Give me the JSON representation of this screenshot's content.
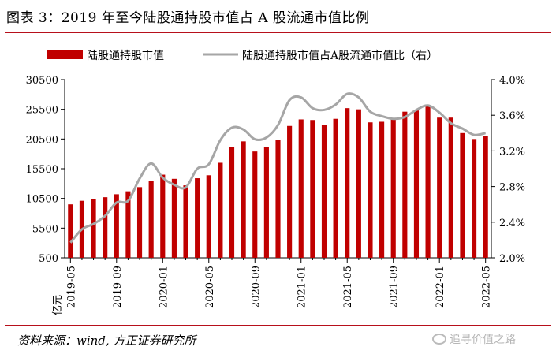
{
  "header": {
    "title": "图表 3：2019 年至今陆股通持股市值占 A 股流通市值比例"
  },
  "footer": {
    "source": "资料来源：wind, 方正证券研究所",
    "watermark": "追寻价值之路"
  },
  "colors": {
    "bar": "#c00000",
    "line": "#a6a6a6",
    "rule": "#b7101b"
  },
  "icons": {
    "watermark": "wechat-icon"
  },
  "chart_data": {
    "type": "bar",
    "y_unit_label": "亿元",
    "x": [
      "2019-05",
      "2019-06",
      "2019-07",
      "2019-08",
      "2019-09",
      "2019-10",
      "2019-11",
      "2019-12",
      "2020-01",
      "2020-02",
      "2020-03",
      "2020-04",
      "2020-05",
      "2020-06",
      "2020-07",
      "2020-08",
      "2020-09",
      "2020-10",
      "2020-11",
      "2020-12",
      "2021-01",
      "2021-02",
      "2021-03",
      "2021-04",
      "2021-05",
      "2021-06",
      "2021-07",
      "2021-08",
      "2021-09",
      "2021-10",
      "2021-11",
      "2021-12",
      "2022-01",
      "2022-02",
      "2022-03",
      "2022-04",
      "2022-05"
    ],
    "x_tick_labels": [
      "2019-05",
      "2019-09",
      "2020-01",
      "2020-05",
      "2020-09",
      "2021-01",
      "2021-05",
      "2021-09",
      "2022-01",
      "2022-05"
    ],
    "y_left": {
      "ticks": [
        "500",
        "5500",
        "10500",
        "15500",
        "20500",
        "25500",
        "30500"
      ],
      "min": 500,
      "max": 30500
    },
    "y_right": {
      "ticks": [
        "2.0%",
        "2.4%",
        "2.8%",
        "3.2%",
        "3.6%",
        "4.0%"
      ],
      "min": 2.0,
      "max": 4.0
    },
    "legend_placement": "top-center",
    "series": [
      {
        "name": "陆股通持股市值",
        "type": "bar",
        "axis": "left",
        "values": [
          9500,
          10100,
          10400,
          10700,
          11200,
          11700,
          12400,
          13400,
          14500,
          13800,
          12700,
          13900,
          14400,
          16500,
          19200,
          20100,
          18400,
          19200,
          20300,
          22700,
          23800,
          23700,
          22800,
          23900,
          25700,
          25500,
          23300,
          23400,
          24000,
          25100,
          25300,
          26200,
          24100,
          24100,
          21500,
          20500,
          21000
        ]
      },
      {
        "name": "陆股通持股市值占A股流通市值比（右）",
        "type": "line",
        "axis": "right",
        "values": [
          2.17,
          2.32,
          2.38,
          2.47,
          2.62,
          2.64,
          2.89,
          3.06,
          2.9,
          2.82,
          2.79,
          3.0,
          3.05,
          3.32,
          3.46,
          3.44,
          3.33,
          3.35,
          3.49,
          3.77,
          3.8,
          3.68,
          3.66,
          3.72,
          3.84,
          3.8,
          3.64,
          3.59,
          3.56,
          3.58,
          3.66,
          3.71,
          3.63,
          3.51,
          3.45,
          3.38,
          3.4
        ]
      }
    ]
  }
}
